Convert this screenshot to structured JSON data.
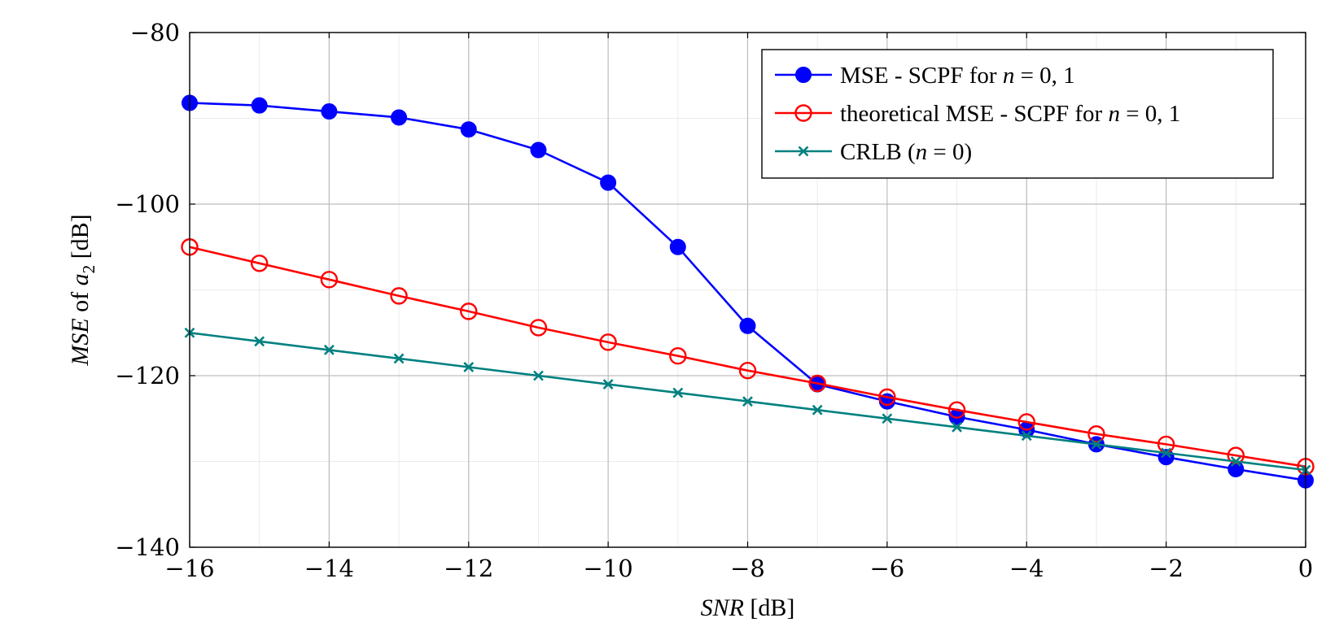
{
  "chart_data": {
    "type": "line",
    "title": "",
    "xlabel": {
      "italic": "SNR",
      "rest": " [dB]"
    },
    "ylabel": {
      "italic1": "MSE",
      "mid": " of ",
      "italic2": "a",
      "sub": "2",
      "rest": " [dB]"
    },
    "xlim": [
      -16,
      0
    ],
    "ylim": [
      -140,
      -80
    ],
    "x": [
      -16,
      -15,
      -14,
      -13,
      -12,
      -11,
      -10,
      -9,
      -8,
      -7,
      -6,
      -5,
      -4,
      -3,
      -2,
      -1,
      0
    ],
    "xticks": [
      -16,
      -14,
      -12,
      -10,
      -8,
      -6,
      -4,
      -2,
      0
    ],
    "xtick_labels": [
      "−16",
      "−14",
      "−12",
      "−10",
      "−8",
      "−6",
      "−4",
      "−2",
      "0"
    ],
    "yticks": [
      -140,
      -120,
      -100,
      -80
    ],
    "ytick_labels": [
      "−140",
      "−120",
      "−100",
      "−80"
    ],
    "grid": true,
    "legend_position": "top-right",
    "series": [
      {
        "name": "MSE - SCPF for n = 0, 1",
        "legend": {
          "text": "MSE - SCPF for ",
          "italic": "n",
          "tail": " = 0, 1"
        },
        "color": "#0000ff",
        "marker": "filled-circle",
        "values": [
          -88.2,
          -88.5,
          -89.2,
          -89.9,
          -91.3,
          -93.7,
          -97.5,
          -105.0,
          -114.2,
          -121.0,
          -123.0,
          -124.8,
          -126.3,
          -128.0,
          -129.5,
          -130.9,
          -132.2
        ]
      },
      {
        "name": "theoretical MSE - SCPF for n = 0, 1",
        "legend": {
          "text": "theoretical MSE - SCPF for ",
          "italic": "n",
          "tail": " = 0, 1"
        },
        "color": "#ff0000",
        "marker": "open-circle",
        "values": [
          -105.0,
          -106.9,
          -108.8,
          -110.7,
          -112.5,
          -114.4,
          -116.1,
          -117.7,
          -119.4,
          -120.9,
          -122.5,
          -124.0,
          -125.4,
          -126.8,
          -128.0,
          -129.3,
          -130.6
        ]
      },
      {
        "name": "CRLB (n = 0)",
        "legend": {
          "text": "CRLB (",
          "italic": "n",
          "tail": " = 0)"
        },
        "color": "#008080",
        "marker": "x",
        "values": [
          -115.0,
          -116.0,
          -117.0,
          -118.0,
          -119.0,
          -120.0,
          -121.0,
          -122.0,
          -123.0,
          -124.0,
          -125.0,
          -126.0,
          -127.0,
          -128.0,
          -129.0,
          -130.0,
          -131.0
        ]
      }
    ]
  }
}
